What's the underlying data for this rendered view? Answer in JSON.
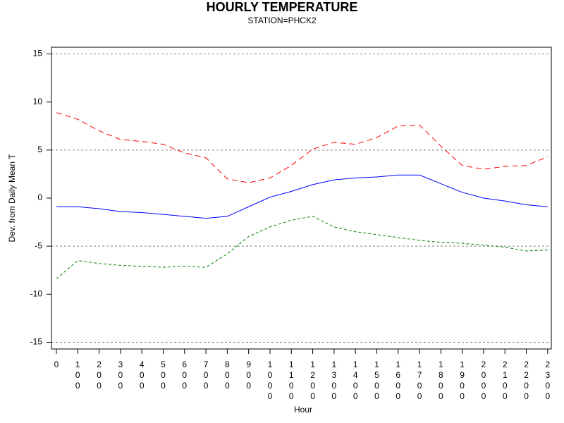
{
  "chart_data": {
    "type": "line",
    "title": "HOURLY TEMPERATURE",
    "subtitle": "STATION=PHCK2",
    "x_label": "Hour",
    "y_label": "Dev. from Daily Mean T",
    "x": [
      0,
      100,
      200,
      300,
      400,
      500,
      600,
      700,
      800,
      900,
      1000,
      1100,
      1200,
      1300,
      1400,
      1500,
      1600,
      1700,
      1800,
      1900,
      2000,
      2100,
      2200,
      2300
    ],
    "xlim": [
      -23,
      2317
    ],
    "xticks": [
      0,
      100,
      200,
      300,
      400,
      500,
      600,
      700,
      800,
      900,
      1000,
      1100,
      1200,
      1300,
      1400,
      1500,
      1600,
      1700,
      1800,
      1900,
      2000,
      2100,
      2200,
      2300
    ],
    "ylim": [
      -15.7,
      15.7
    ],
    "yticks": [
      -15,
      -10,
      -5,
      0,
      5,
      10,
      15
    ],
    "grid_lines": [
      -15,
      -5,
      5,
      15
    ],
    "series": [
      {
        "color": "#0000ff",
        "dash": "none",
        "values": [
          -0.9,
          -0.9,
          -1.1,
          -1.4,
          -1.5,
          -1.7,
          -1.9,
          -2.1,
          -1.9,
          -0.9,
          0.1,
          0.7,
          1.4,
          1.9,
          2.1,
          2.2,
          2.4,
          2.4,
          1.5,
          0.6,
          0.0,
          -0.3,
          -0.7,
          -0.9
        ]
      },
      {
        "color": "#ff0000",
        "dash": "8 5",
        "values": [
          8.9,
          8.2,
          7.0,
          6.1,
          5.9,
          5.6,
          4.7,
          4.2,
          2.0,
          1.6,
          2.1,
          3.4,
          5.1,
          5.8,
          5.6,
          6.3,
          7.5,
          7.6,
          5.4,
          3.4,
          3.0,
          3.3,
          3.4,
          4.3
        ]
      },
      {
        "color": "#008000",
        "dash": "4 3",
        "values": [
          -8.4,
          -6.5,
          -6.8,
          -7.0,
          -7.1,
          -7.2,
          -7.1,
          -7.2,
          -5.8,
          -4.0,
          -3.0,
          -2.3,
          -1.9,
          -3.0,
          -3.5,
          -3.8,
          -4.1,
          -4.4,
          -4.6,
          -4.7,
          -4.9,
          -5.1,
          -5.5,
          -5.4
        ]
      }
    ]
  }
}
